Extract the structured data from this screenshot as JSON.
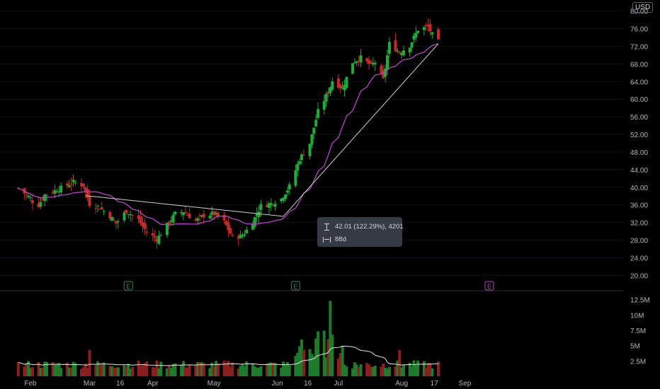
{
  "currency_badge": "USD",
  "measure": {
    "change_text": "42.01 (122.29%), 4201",
    "bars_text": "88d",
    "range_icon": "price-range-icon",
    "bars_icon": "date-range-icon"
  },
  "colors": {
    "up": "#22ab3a",
    "down": "#c42b2b",
    "vol_up": "#1f7a2c",
    "vol_down": "#8a1f1f",
    "ma": "#b845c7",
    "trendline": "#d0d0d0",
    "vol_ma": "#e6e6e6",
    "earnings": "#2e8b57",
    "earnings_next": "#b845c7"
  },
  "chart_data": {
    "type": "candlestick",
    "price_axis": {
      "ticks": [
        "80.00",
        "76.00",
        "72.00",
        "68.00",
        "64.00",
        "60.00",
        "56.00",
        "52.00",
        "48.00",
        "44.00",
        "40.00",
        "36.00",
        "32.00",
        "28.00",
        "24.00",
        "20.00"
      ],
      "ylim": [
        17.5,
        82.5
      ]
    },
    "volume_axis": {
      "ticks": [
        "12.5M",
        "10M",
        "7.5M",
        "5M",
        "2.5M"
      ],
      "ylim": [
        0,
        13.5
      ]
    },
    "time_axis": {
      "labels": [
        "Feb",
        "Mar",
        "16",
        "Apr",
        "May",
        "Jun",
        "16",
        "Jul",
        "Aug",
        "17",
        "Sep"
      ]
    },
    "earnings_markers": [
      {
        "label": "E",
        "date": "Mar 20",
        "upcoming": false
      },
      {
        "label": "E",
        "date": "Jun 10",
        "upcoming": false
      },
      {
        "label": "E",
        "date": "Sep 13",
        "upcoming": true
      }
    ],
    "close_anchors": [
      [
        "Jan 26",
        39.8
      ],
      [
        "Feb 1",
        37.5
      ],
      [
        "Feb 4",
        35.2
      ],
      [
        "Feb 8",
        38.3
      ],
      [
        "Feb 15",
        39.6
      ],
      [
        "Feb 22",
        41.2
      ],
      [
        "Feb 27",
        40.4
      ],
      [
        "Mar 1",
        36.2
      ],
      [
        "Mar 6",
        35.4
      ],
      [
        "Mar 11",
        33.4
      ],
      [
        "Mar 14",
        31.8
      ],
      [
        "Mar 19",
        34.6
      ],
      [
        "Mar 25",
        32.6
      ],
      [
        "Mar 29",
        29.8
      ],
      [
        "Apr 3",
        28.2
      ],
      [
        "Apr 8",
        31.4
      ],
      [
        "Apr 12",
        34.0
      ],
      [
        "Apr 16",
        34.5
      ],
      [
        "Apr 22",
        32.4
      ],
      [
        "Apr 26",
        33.6
      ],
      [
        "May 1",
        34.0
      ],
      [
        "May 6",
        32.2
      ],
      [
        "May 10",
        28.6
      ],
      [
        "May 15",
        29.0
      ],
      [
        "May 20",
        32.2
      ],
      [
        "May 24",
        35.8
      ],
      [
        "May 29",
        36.3
      ],
      [
        "Jun 3",
        37.4
      ],
      [
        "Jun 7",
        40.2
      ],
      [
        "Jun 12",
        46.4
      ],
      [
        "Jun 17",
        50.0
      ],
      [
        "Jun 21",
        57.2
      ],
      [
        "Jun 26",
        61.6
      ],
      [
        "Jun 28",
        64.2
      ],
      [
        "Jul 3",
        62.5
      ],
      [
        "Jul 8",
        68.4
      ],
      [
        "Jul 12",
        69.4
      ],
      [
        "Jul 17",
        67.6
      ],
      [
        "Jul 19",
        68.4
      ],
      [
        "Jul 23",
        64.4
      ],
      [
        "Jul 26",
        72.6
      ],
      [
        "Jul 31",
        70.6
      ],
      [
        "Aug 5",
        72.2
      ],
      [
        "Aug 9",
        75.8
      ],
      [
        "Aug 14",
        76.4
      ],
      [
        "Aug 16",
        74.6
      ],
      [
        "Aug 19",
        73.0
      ]
    ],
    "volume_range_M": [
      0.8,
      12.3
    ],
    "trendline": {
      "start": [
        "Feb 28",
        38.1
      ],
      "end": [
        "Jun 4",
        33.4
      ],
      "slope_to": [
        "Aug 19",
        72.6
      ]
    },
    "moving_average": {
      "type": "SMA",
      "length": 20
    },
    "measure_tool": {
      "change": 42.01,
      "change_pct": 122.29,
      "ticks": 4201,
      "bars": 88
    }
  }
}
